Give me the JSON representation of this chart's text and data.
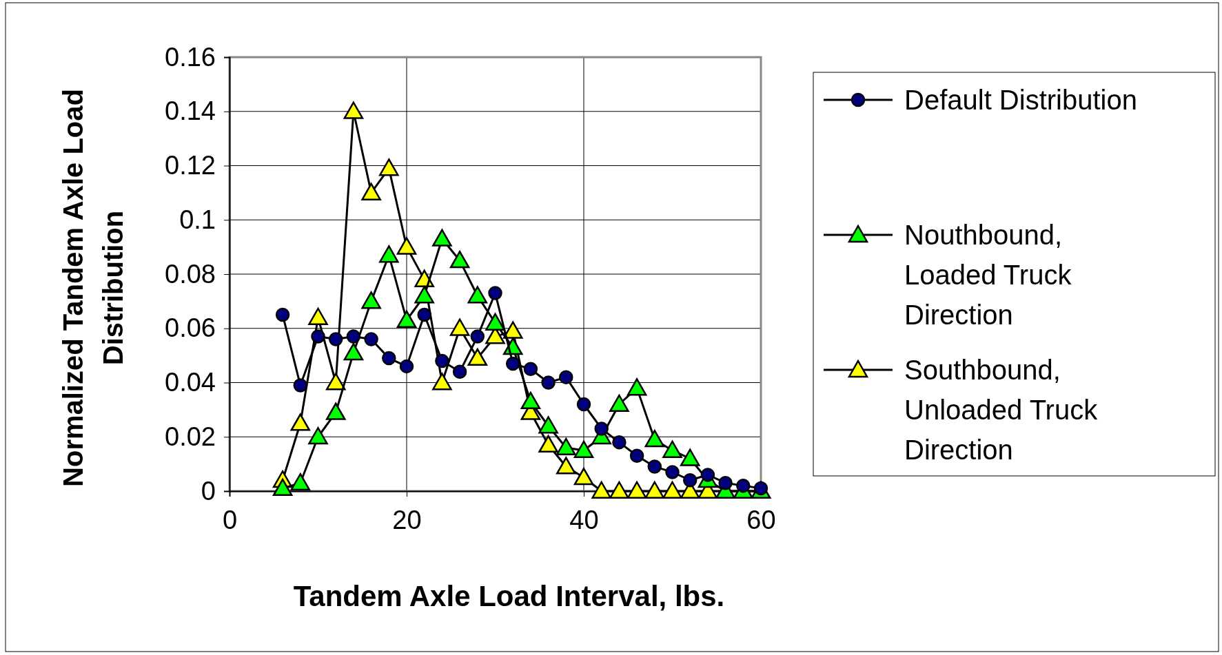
{
  "chart_data": {
    "type": "line",
    "xlabel": "Tandem Axle Load Interval, lbs.",
    "ylabel": "Normalized Tandem Axle Load Distribution",
    "x": [
      6,
      8,
      10,
      12,
      14,
      16,
      18,
      20,
      22,
      24,
      26,
      28,
      30,
      32,
      34,
      36,
      38,
      40,
      42,
      44,
      46,
      48,
      50,
      52,
      54,
      56,
      58,
      60
    ],
    "series": [
      {
        "name": "Default Distribution",
        "color": "#000080",
        "marker": "circle",
        "values": [
          0.065,
          0.039,
          0.057,
          0.056,
          0.057,
          0.056,
          0.049,
          0.046,
          0.065,
          0.048,
          0.044,
          0.057,
          0.073,
          0.047,
          0.045,
          0.04,
          0.042,
          0.032,
          0.023,
          0.018,
          0.013,
          0.009,
          0.007,
          0.004,
          0.006,
          0.003,
          0.002,
          0.001
        ]
      },
      {
        "name": "Nouthbound, Loaded Truck Direction",
        "color": "#00ff00",
        "marker": "triangle",
        "values": [
          0.001,
          0.003,
          0.02,
          0.029,
          0.051,
          0.07,
          0.087,
          0.063,
          0.072,
          0.093,
          0.085,
          0.072,
          0.062,
          0.053,
          0.033,
          0.024,
          0.016,
          0.015,
          0.02,
          0.032,
          0.038,
          0.019,
          0.015,
          0.012,
          0.004,
          0,
          0,
          0
        ]
      },
      {
        "name": "Southbound, Unloaded Truck Direction",
        "color": "#ffff00",
        "marker": "triangle",
        "values": [
          0.004,
          0.025,
          0.064,
          0.04,
          0.14,
          0.11,
          0.119,
          0.09,
          0.078,
          0.04,
          0.06,
          0.049,
          0.057,
          0.059,
          0.029,
          0.017,
          0.009,
          0.005,
          0,
          0,
          0,
          0,
          0,
          0,
          0,
          0,
          0,
          0
        ]
      }
    ],
    "xlim": [
      0,
      60
    ],
    "xticks": [
      0,
      20,
      40,
      60
    ],
    "ylim": [
      0,
      0.16
    ],
    "yticks": [
      0,
      0.02,
      0.04,
      0.06,
      0.08,
      {
        "value": 0.1,
        "label": "0.1"
      },
      0.12,
      0.14,
      0.16
    ],
    "grid": true,
    "legend": "right"
  }
}
